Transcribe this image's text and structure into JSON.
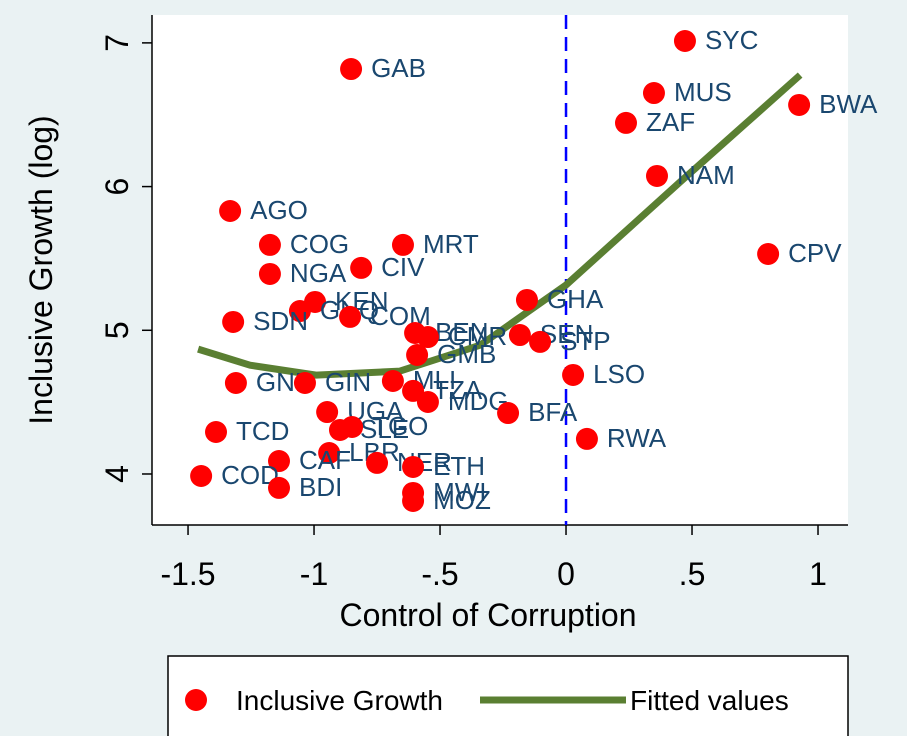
{
  "chart_data": {
    "type": "scatter",
    "x_label": "Control of Corruption",
    "y_label": "Inclusive Growth (log)",
    "xlim": [
      -1.643,
      1.119
    ],
    "ylim": [
      3.645,
      7.194
    ],
    "xticks": [
      {
        "value": -1.5,
        "label": "-1.5"
      },
      {
        "value": -1,
        "label": "-1"
      },
      {
        "value": -0.5,
        "label": "-.5"
      },
      {
        "value": 0,
        "label": "0"
      },
      {
        "value": 0.5,
        "label": ".5"
      },
      {
        "value": 1,
        "label": "1"
      }
    ],
    "yticks": [
      4,
      5,
      6,
      7
    ],
    "vline": 0,
    "vline_color": "#0000ff",
    "series": [
      {
        "name": "Inclusive Growth",
        "type": "scatter",
        "color": "#ff0000",
        "labels": [
          "SYC",
          "GAB",
          "MUS",
          "BWA",
          "ZAF",
          "NAM",
          "AGO",
          "COG",
          "MRT",
          "CPV",
          "CIV",
          "NGA",
          "GHA",
          "KEN",
          "GNQ",
          "SDN",
          "COM",
          "BEN",
          "CMR",
          "SEN",
          "STP",
          "GMB",
          "GNB",
          "GIN",
          "MLI",
          "TZA",
          "MDG",
          "BFA",
          "LSO",
          "UGA",
          "SLE",
          "TGO",
          "TCD",
          "RWA",
          "LBR",
          "CAF",
          "NER",
          "ETH",
          "COD",
          "BDI",
          "MWI",
          "MOZ"
        ],
        "x": [
          0.472,
          -0.853,
          0.349,
          0.925,
          0.238,
          0.361,
          -1.333,
          -1.175,
          -0.647,
          0.802,
          -0.813,
          -1.175,
          -0.155,
          -0.996,
          -1.056,
          -1.321,
          -0.857,
          -0.599,
          -0.548,
          -0.183,
          -0.103,
          -0.591,
          -1.31,
          -1.036,
          -0.687,
          -0.607,
          -0.548,
          -0.23,
          0.028,
          -0.948,
          -0.897,
          -0.849,
          -1.389,
          0.083,
          -0.94,
          -1.139,
          -0.75,
          -0.607,
          -1.448,
          -1.139,
          -0.607,
          -0.607
        ],
        "values": [
          7.013,
          6.818,
          6.651,
          6.568,
          6.443,
          6.074,
          5.83,
          5.594,
          5.594,
          5.531,
          5.434,
          5.392,
          5.211,
          5.197,
          5.134,
          5.058,
          5.093,
          4.981,
          4.953,
          4.967,
          4.919,
          4.828,
          4.633,
          4.633,
          4.647,
          4.578,
          4.501,
          4.424,
          4.689,
          4.431,
          4.306,
          4.327,
          4.292,
          4.244,
          4.146,
          4.09,
          4.077,
          4.049,
          3.986,
          3.903,
          3.868,
          3.812
        ]
      },
      {
        "name": "Fitted values",
        "type": "line",
        "color": "#5a7f32",
        "x": [
          -1.46,
          -1.254,
          -0.992,
          -0.659,
          -0.341,
          0,
          0.452,
          0.929
        ],
        "values": [
          4.869,
          4.757,
          4.688,
          4.716,
          4.896,
          5.315,
          6.031,
          6.776
        ]
      }
    ]
  }
}
